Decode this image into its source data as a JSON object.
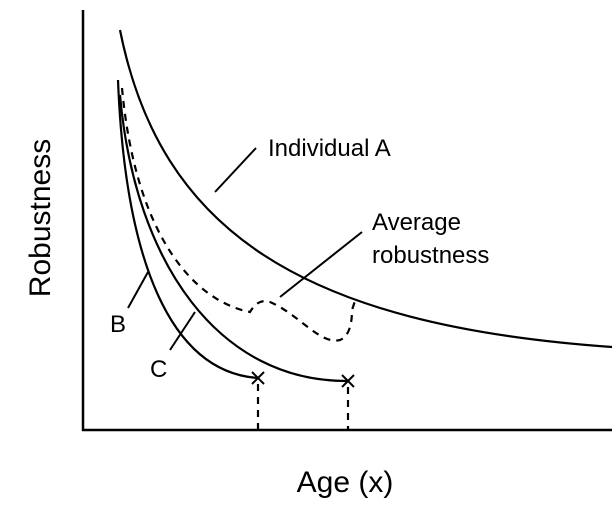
{
  "axes": {
    "y_title": "Robustness",
    "x_title": "Age (x)"
  },
  "labels": {
    "individual_a": "Individual A",
    "average": [
      "Average",
      "robustness"
    ],
    "b": "B",
    "c": "C"
  }
}
